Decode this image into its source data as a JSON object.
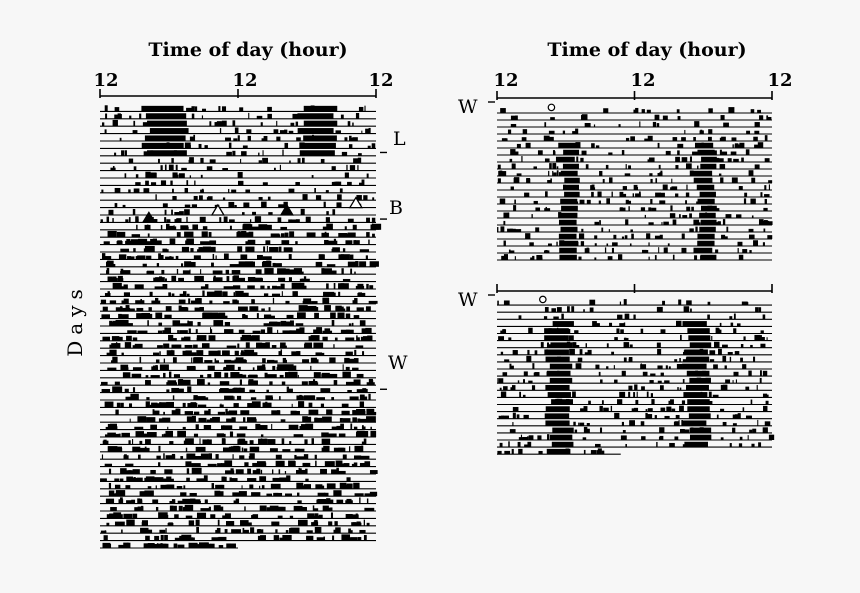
{
  "chart_data": [
    {
      "type": "actogram",
      "panel": "left",
      "title": "Time of day (hour)",
      "ylabel": "Days",
      "x_ticks": [
        "12",
        "12",
        "12"
      ],
      "x_range_hours": [
        0,
        48
      ],
      "day_count": 60,
      "markers": [
        {
          "label": "L",
          "day": 6
        },
        {
          "label": "B",
          "day": 15
        },
        {
          "label": "W",
          "day": 38
        }
      ],
      "triangles": [
        {
          "day": 15,
          "hour": 8.5,
          "filled": true
        },
        {
          "day": 14,
          "hour": 20.5,
          "filled": false
        },
        {
          "day": 14,
          "hour": 32.5,
          "filled": true
        },
        {
          "day": 13,
          "hour": 44.5,
          "filled": false
        }
      ],
      "main_bouts_hours": [
        {
          "from_day": 0,
          "to_day": 6,
          "start": 8,
          "end": 15
        },
        {
          "from_day": 0,
          "to_day": 6,
          "start": 35,
          "end": 41
        }
      ]
    },
    {
      "type": "actogram",
      "panel": "right-top",
      "title": "Time of day (hour)",
      "x_ticks": [
        "12",
        "12",
        "12"
      ],
      "x_range_hours": [
        0,
        48
      ],
      "day_count": 22,
      "markers": [
        {
          "label": "W",
          "day": 0
        }
      ],
      "circle_hour": 9.5,
      "main_bouts_hours": [
        {
          "from_day": 5,
          "to_day": 21,
          "start": 11,
          "end": 14
        },
        {
          "from_day": 5,
          "to_day": 21,
          "start": 35,
          "end": 38
        }
      ]
    },
    {
      "type": "actogram",
      "panel": "right-bottom",
      "x_range_hours": [
        0,
        48
      ],
      "day_count": 22,
      "markers": [
        {
          "label": "W",
          "day": 0
        }
      ],
      "circle_hour": 8,
      "main_bouts_hours": [
        {
          "from_day": 3,
          "to_day": 21,
          "start": 9,
          "end": 13
        },
        {
          "from_day": 3,
          "to_day": 21,
          "start": 33,
          "end": 37
        }
      ]
    }
  ]
}
